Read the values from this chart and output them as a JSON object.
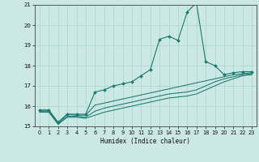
{
  "xlabel": "Humidex (Indice chaleur)",
  "bg_color": "#cce8e4",
  "line_color": "#1a7a6e",
  "grid_color": "#aad4d0",
  "xmin": 0,
  "xmax": 23,
  "ymin": 15,
  "ymax": 21,
  "vals1": [
    15.8,
    15.8,
    15.2,
    15.6,
    15.6,
    15.6,
    16.7,
    16.8,
    17.0,
    17.1,
    17.2,
    17.5,
    17.8,
    19.3,
    19.45,
    19.25,
    20.65,
    21.1,
    18.2,
    18.0,
    17.55,
    17.65,
    17.7,
    17.7
  ],
  "vals2": [
    15.8,
    15.8,
    15.2,
    15.6,
    15.55,
    15.55,
    16.05,
    16.15,
    16.25,
    16.35,
    16.45,
    16.55,
    16.65,
    16.75,
    16.85,
    16.95,
    17.05,
    17.15,
    17.25,
    17.35,
    17.45,
    17.55,
    17.6,
    17.65
  ],
  "vals3": [
    15.75,
    15.75,
    15.15,
    15.5,
    15.5,
    15.45,
    15.75,
    15.9,
    16.0,
    16.1,
    16.2,
    16.3,
    16.4,
    16.5,
    16.6,
    16.65,
    16.7,
    16.8,
    17.0,
    17.2,
    17.35,
    17.45,
    17.55,
    17.6
  ],
  "vals4": [
    15.7,
    15.7,
    15.1,
    15.45,
    15.45,
    15.4,
    15.55,
    15.7,
    15.8,
    15.9,
    16.0,
    16.1,
    16.2,
    16.3,
    16.4,
    16.45,
    16.5,
    16.6,
    16.8,
    17.0,
    17.2,
    17.35,
    17.5,
    17.55
  ]
}
